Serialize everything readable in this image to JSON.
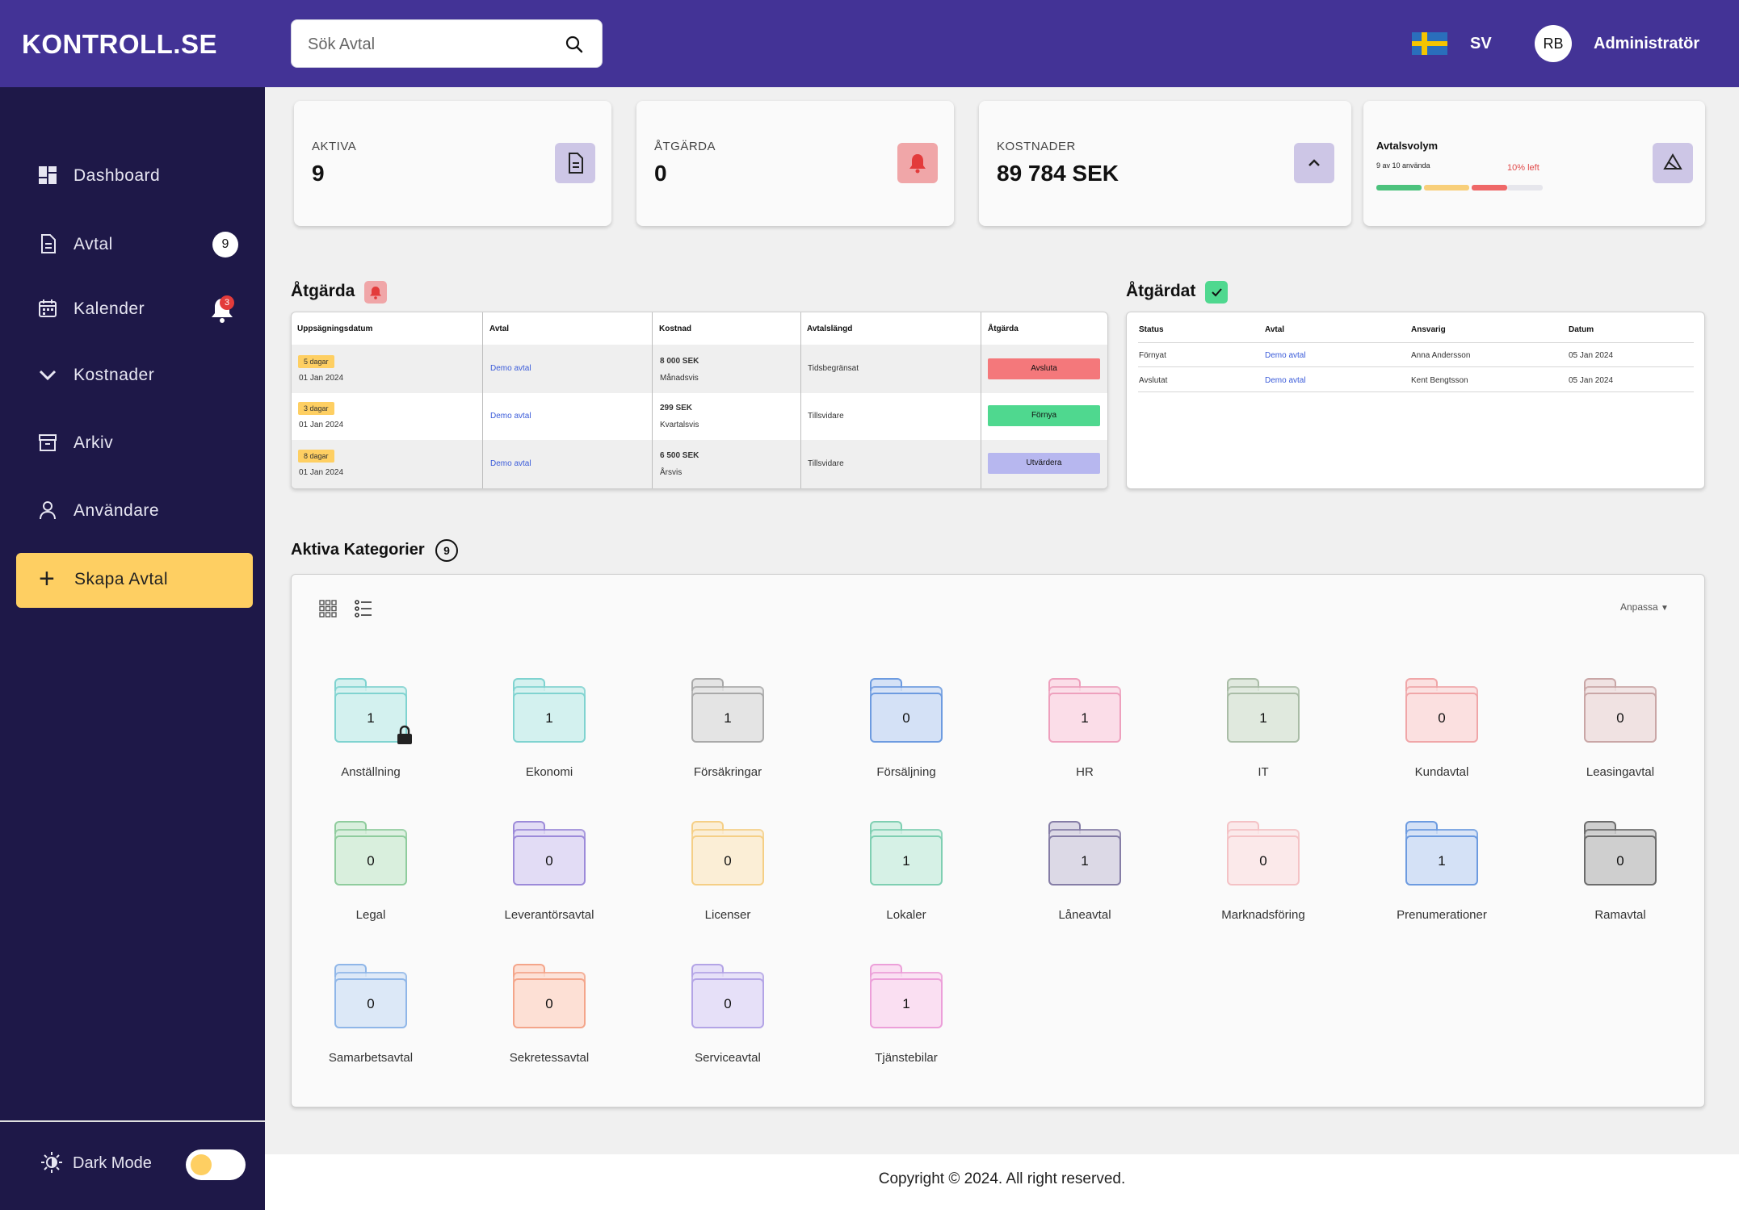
{
  "header": {
    "logo": "KONTROLL.SE",
    "search_placeholder": "Sök Avtal",
    "language": "SV",
    "avatar_initials": "RB",
    "user_role": "Administratör"
  },
  "sidebar": {
    "items": [
      {
        "label": "Dashboard",
        "icon": "dashboard-icon"
      },
      {
        "label": "Avtal",
        "icon": "document-icon",
        "badge": "9"
      },
      {
        "label": "Kalender",
        "icon": "calendar-icon",
        "badge": "3"
      },
      {
        "label": "Kostnader",
        "icon": "chevron-down-icon"
      },
      {
        "label": "Arkiv",
        "icon": "archive-icon"
      },
      {
        "label": "Användare",
        "icon": "user-icon"
      }
    ],
    "create_button": "Skapa Avtal",
    "dark_mode_label": "Dark Mode"
  },
  "stats": {
    "aktiva": {
      "label": "AKTIVA",
      "value": "9"
    },
    "atgarda": {
      "label": "ÅTGÄRDA",
      "value": "0"
    },
    "kostnader": {
      "label": "KOSTNADER",
      "value": "89 784 SEK"
    },
    "volym": {
      "title": "Avtalsvolym",
      "subtitle": "9 av 10 använda",
      "left": "10% left",
      "used_fraction": 0.9
    }
  },
  "atgarda_table": {
    "title": "Åtgärda",
    "headers": [
      "Uppsägningsdatum",
      "Avtal",
      "Kostnad",
      "Avtalslängd",
      "Åtgärda"
    ],
    "rows": [
      {
        "tag": "5 dagar",
        "date": "01 Jan 2024",
        "avtal": "Demo avtal",
        "cost": "8 000 SEK",
        "period": "Månadsvis",
        "length": "Tidsbegränsat",
        "action": "Avsluta"
      },
      {
        "tag": "3 dagar",
        "date": "01 Jan 2024",
        "avtal": "Demo avtal",
        "cost": "299 SEK",
        "period": "Kvartalsvis",
        "length": "Tillsvidare",
        "action": "Förnya"
      },
      {
        "tag": "8 dagar",
        "date": "01 Jan 2024",
        "avtal": "Demo avtal",
        "cost": "6 500 SEK",
        "period": "Årsvis",
        "length": "Tillsvidare",
        "action": "Utvärdera"
      }
    ]
  },
  "atgardat_table": {
    "title": "Åtgärdat",
    "headers": [
      "Status",
      "Avtal",
      "Ansvarig",
      "Datum"
    ],
    "rows": [
      {
        "status": "Förnyat",
        "avtal": "Demo avtal",
        "ansvarig": "Anna Andersson",
        "datum": "05 Jan 2024"
      },
      {
        "status": "Avslutat",
        "avtal": "Demo avtal",
        "ansvarig": "Kent Bengtsson",
        "datum": "05 Jan 2024"
      }
    ]
  },
  "categories": {
    "title": "Aktiva Kategorier",
    "count": "9",
    "customize_label": "Anpassa",
    "items": [
      {
        "name": "Anställning",
        "count": "1",
        "color": "#7fd3d0",
        "fill": "#d3f1ef",
        "locked": true
      },
      {
        "name": "Ekonomi",
        "count": "1",
        "color": "#7fd3d0",
        "fill": "#d3f1ef"
      },
      {
        "name": "Försäkringar",
        "count": "1",
        "color": "#a9a9a9",
        "fill": "#e4e4e4"
      },
      {
        "name": "Försäljning",
        "count": "0",
        "color": "#6d9be0",
        "fill": "#d4e1f6"
      },
      {
        "name": "HR",
        "count": "1",
        "color": "#eea0bd",
        "fill": "#fbdde8"
      },
      {
        "name": "IT",
        "count": "1",
        "color": "#a9bca6",
        "fill": "#e0e9de"
      },
      {
        "name": "Kundavtal",
        "count": "0",
        "color": "#f0a6a8",
        "fill": "#fbe0e0"
      },
      {
        "name": "Leasingavtal",
        "count": "0",
        "color": "#c9a6a6",
        "fill": "#f0e2e2"
      },
      {
        "name": "Legal",
        "count": "0",
        "color": "#8fcc9d",
        "fill": "#d9efdd"
      },
      {
        "name": "Leverantörsavtal",
        "count": "0",
        "color": "#9c8ad9",
        "fill": "#e2dcf5"
      },
      {
        "name": "Licenser",
        "count": "0",
        "color": "#f5cf86",
        "fill": "#fbeed6"
      },
      {
        "name": "Lokaler",
        "count": "1",
        "color": "#7fcfb2",
        "fill": "#d6f1e6"
      },
      {
        "name": "Låneavtal",
        "count": "1",
        "color": "#857da6",
        "fill": "#dcd9e6"
      },
      {
        "name": "Marknadsföring",
        "count": "0",
        "color": "#f4c2c5",
        "fill": "#fbe9ea"
      },
      {
        "name": "Prenumerationer",
        "count": "1",
        "color": "#6d9be0",
        "fill": "#d4e1f6"
      },
      {
        "name": "Ramavtal",
        "count": "0",
        "color": "#6c6c6c",
        "fill": "#cfcfcf"
      },
      {
        "name": "Samarbetsavtal",
        "count": "0",
        "color": "#8fb6e8",
        "fill": "#dce8f7"
      },
      {
        "name": "Sekretessavtal",
        "count": "0",
        "color": "#f4a58a",
        "fill": "#fde0d5"
      },
      {
        "name": "Serviceavtal",
        "count": "0",
        "color": "#b3a4e6",
        "fill": "#e6e0f8"
      },
      {
        "name": "Tjänstebilar",
        "count": "1",
        "color": "#ec9fd9",
        "fill": "#fadff2"
      }
    ]
  },
  "footer": {
    "text": "Copyright © 2024. All right reserved."
  }
}
